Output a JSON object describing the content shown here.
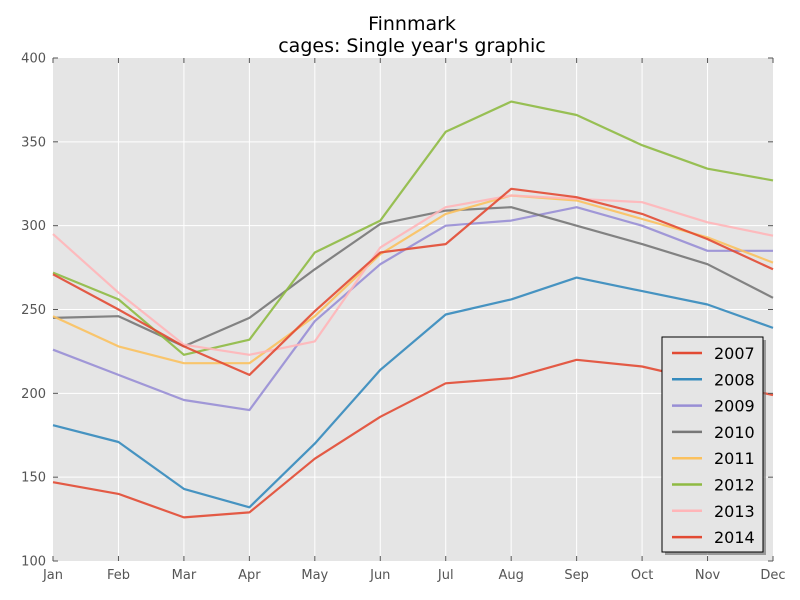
{
  "chart_data": {
    "type": "line",
    "title": "Finnmark",
    "subtitle": "cages: Single year's graphic",
    "xlabel": "",
    "ylabel": "",
    "categories": [
      "Jan",
      "Feb",
      "Mar",
      "Apr",
      "May",
      "Jun",
      "Jul",
      "Aug",
      "Sep",
      "Oct",
      "Nov",
      "Dec"
    ],
    "ylim": [
      100,
      400
    ],
    "yticks": [
      100,
      150,
      200,
      250,
      300,
      350,
      400
    ],
    "grid": true,
    "legend_position": "lower-right",
    "series": [
      {
        "name": "2007",
        "color": "#E24A33",
        "values": [
          147,
          140,
          126,
          129,
          161,
          186,
          206,
          209,
          220,
          216,
          207,
          199
        ]
      },
      {
        "name": "2008",
        "color": "#348ABD",
        "values": [
          181,
          171,
          143,
          132,
          170,
          214,
          247,
          256,
          269,
          261,
          253,
          239
        ]
      },
      {
        "name": "2009",
        "color": "#988ED5",
        "values": [
          226,
          211,
          196,
          190,
          243,
          277,
          300,
          303,
          311,
          300,
          285,
          285
        ]
      },
      {
        "name": "2010",
        "color": "#777777",
        "values": [
          245,
          246,
          228,
          245,
          274,
          301,
          309,
          311,
          300,
          289,
          277,
          257
        ]
      },
      {
        "name": "2011",
        "color": "#FBC15E",
        "values": [
          246,
          228,
          218,
          218,
          246,
          283,
          307,
          318,
          315,
          304,
          293,
          278
        ]
      },
      {
        "name": "2012",
        "color": "#8EBA42",
        "values": [
          272,
          256,
          223,
          232,
          284,
          303,
          356,
          374,
          366,
          348,
          334,
          327
        ]
      },
      {
        "name": "2013",
        "color": "#FFB5B8",
        "values": [
          295,
          260,
          229,
          223,
          231,
          287,
          311,
          318,
          316,
          314,
          302,
          294
        ]
      },
      {
        "name": "2014",
        "color": "#E24A33",
        "values": [
          271,
          250,
          228,
          211,
          249,
          284,
          289,
          322,
          317,
          307,
          292,
          274
        ]
      }
    ]
  }
}
